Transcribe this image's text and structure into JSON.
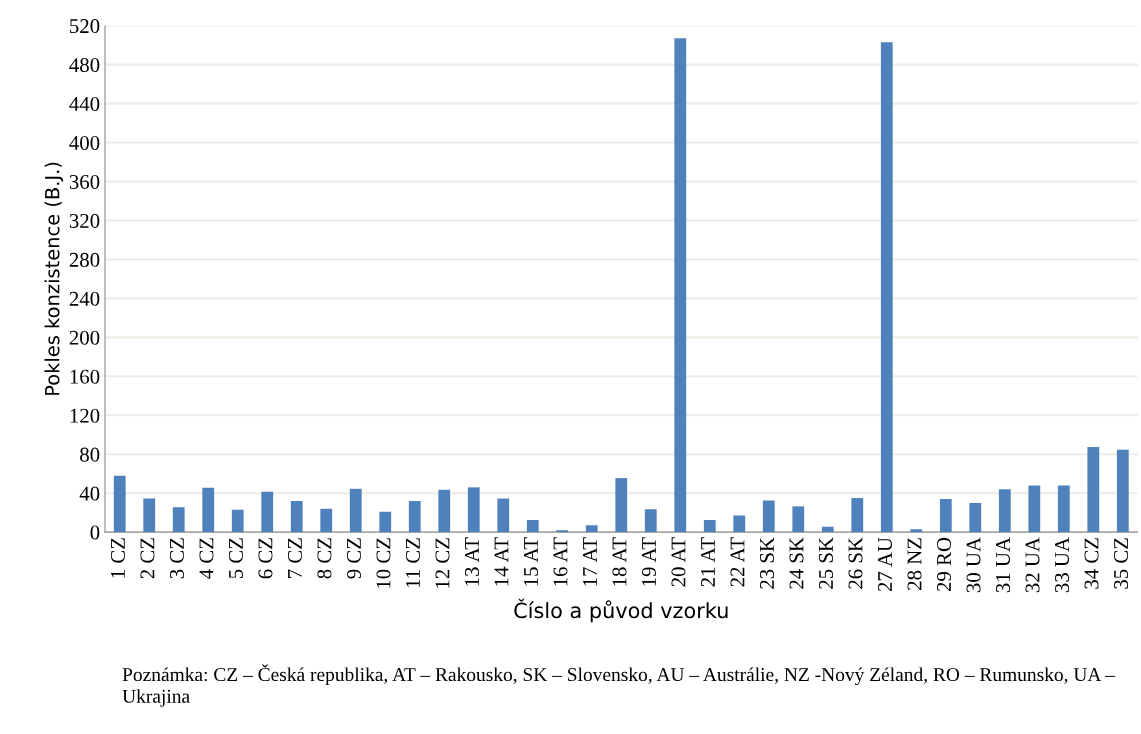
{
  "chart_data": {
    "type": "bar",
    "xlabel": "Číslo a původ vzorku",
    "ylabel": "Pokles konzistence (B.J.)",
    "categories": [
      "1 CZ",
      "2 CZ",
      "3 CZ",
      "4 CZ",
      "5 CZ",
      "6 CZ",
      "7 CZ",
      "8 CZ",
      "9 CZ",
      "10 CZ",
      "11 CZ",
      "12 CZ",
      "13 AT",
      "14 AT",
      "15 AT",
      "16 AT",
      "17 AT",
      "18 AT",
      "19 AT",
      "20 AT",
      "21 AT",
      "22 AT",
      "23 SK",
      "24 SK",
      "25 SK",
      "26 SK",
      "27 AU",
      "28 NZ",
      "29 RO",
      "30 UA",
      "31 UA",
      "32 UA",
      "33 UA",
      "34 CZ",
      "35 CZ"
    ],
    "values": [
      58,
      34.5,
      25.5,
      45.5,
      23,
      41.5,
      32,
      24,
      44.5,
      21,
      32,
      43.5,
      46,
      34.5,
      12.5,
      2,
      7,
      55.5,
      23.5,
      507,
      12.5,
      17,
      32.5,
      26.5,
      5.5,
      35,
      503,
      3,
      34,
      30,
      44,
      48,
      48,
      87.5,
      84.5
    ],
    "color": "#4f81bd",
    "ylim": [
      0,
      520
    ],
    "yticks": [
      0,
      40,
      80,
      120,
      160,
      200,
      240,
      280,
      320,
      360,
      400,
      440,
      480,
      520
    ],
    "grid": "y",
    "annotations": [
      "Poznámka: CZ – Česká republika, AT – Rakousko, SK – Slovensko, AU – Austrálie, NZ -Nový Zéland, RO – Rumunsko, UA – Ukrajina"
    ]
  }
}
